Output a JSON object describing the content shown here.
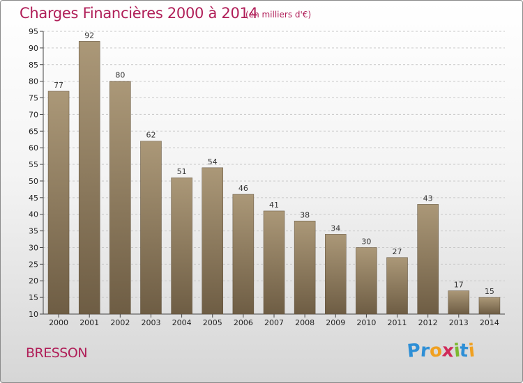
{
  "chart_data": {
    "type": "bar",
    "title": "Charges Financières 2000 à 2014",
    "subtitle": "(en milliers d'€)",
    "categories": [
      "2000",
      "2001",
      "2002",
      "2003",
      "2004",
      "2005",
      "2006",
      "2007",
      "2008",
      "2009",
      "2010",
      "2011",
      "2012",
      "2013",
      "2014"
    ],
    "values": [
      77,
      92,
      80,
      62,
      51,
      54,
      46,
      41,
      38,
      34,
      30,
      27,
      43,
      17,
      15
    ],
    "ylim": [
      10,
      95
    ],
    "yticks": [
      10,
      15,
      20,
      25,
      30,
      35,
      40,
      45,
      50,
      55,
      60,
      65,
      70,
      75,
      80,
      85,
      90,
      95
    ],
    "grid": true,
    "bar_color": "#8c7a5e"
  },
  "footer": {
    "commune": "BRESSON",
    "logo": {
      "letters": [
        "P",
        "r",
        "o",
        "x",
        "i",
        "t",
        "i"
      ],
      "colors": [
        "#2e8fd6",
        "#2e8fd6",
        "#f0a020",
        "#d02a5a",
        "#7cb82f",
        "#2e8fd6",
        "#f0a020"
      ]
    }
  }
}
